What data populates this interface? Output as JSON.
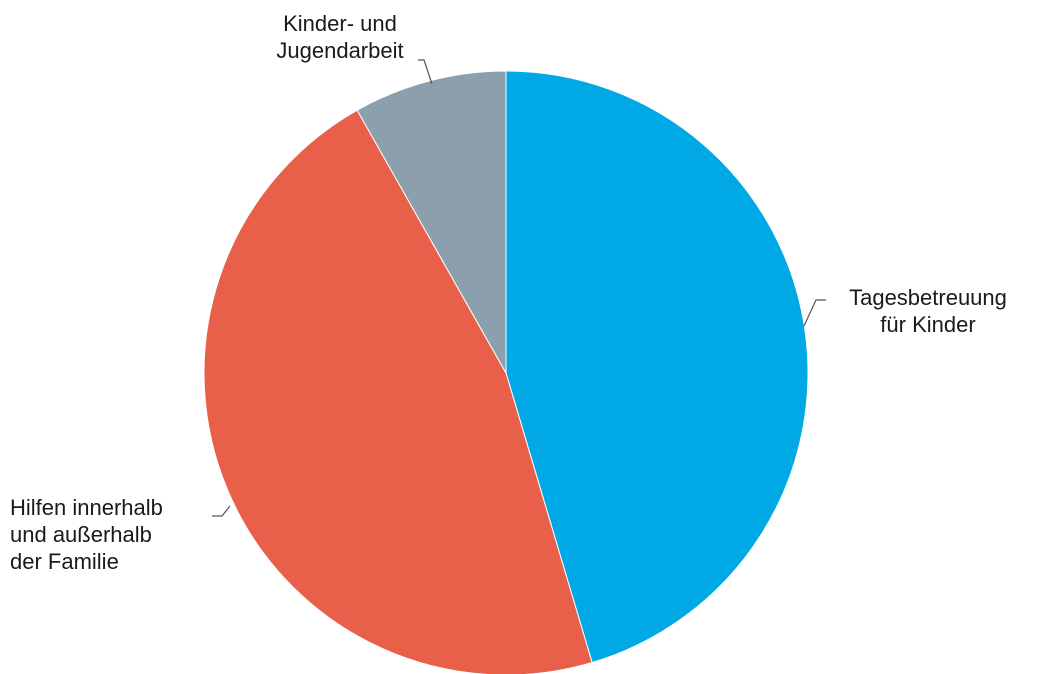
{
  "chart_data": {
    "type": "pie",
    "title": "",
    "start_angle_deg": 0,
    "direction": "clockwise",
    "slices": [
      {
        "label_lines": [
          "Tagesbetreuung",
          "für Kinder"
        ],
        "value": 45.4,
        "color": "#00a9e6"
      },
      {
        "label_lines": [
          "Hilfen innerhalb",
          "und außerhalb",
          "der Familie"
        ],
        "value": 46.4,
        "color": "#e8604a"
      },
      {
        "label_lines": [
          "Kinder- und",
          "Jugendarbeit"
        ],
        "value": 8.2,
        "color": "#8c9fac"
      }
    ],
    "legend": "none",
    "data_labels": false
  }
}
